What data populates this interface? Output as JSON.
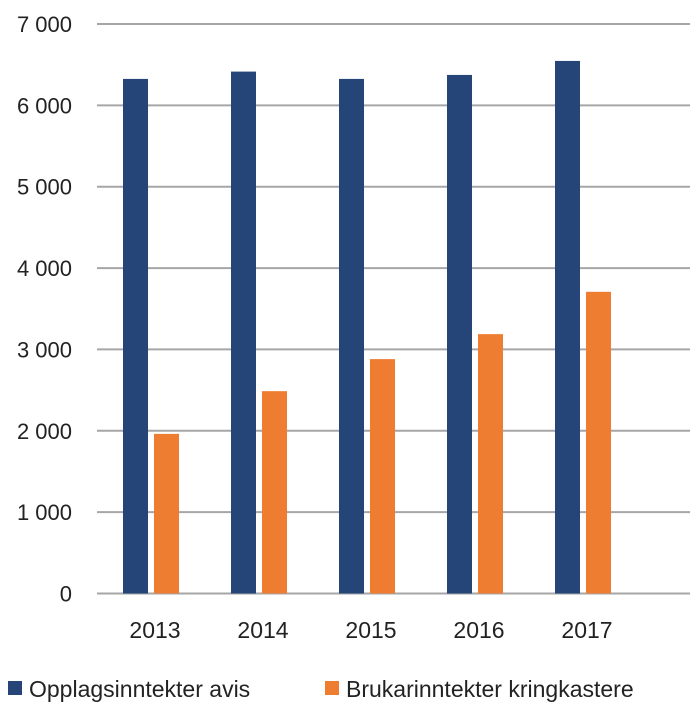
{
  "chart_data": {
    "type": "bar",
    "title": "",
    "xlabel": "",
    "ylabel": "",
    "categories": [
      "2013",
      "2014",
      "2015",
      "2016",
      "2017"
    ],
    "series": [
      {
        "name": "Opplagsinntekter avis",
        "color": "#254478",
        "values": [
          6325,
          6415,
          6325,
          6374,
          6546
        ]
      },
      {
        "name": "Brukarinntekter kringkastere",
        "color": "#ef7d31",
        "values": [
          1962,
          2487,
          2881,
          3188,
          3708
        ]
      }
    ],
    "ylim": [
      0,
      7000
    ],
    "yticks": [
      0,
      1000,
      2000,
      3000,
      4000,
      5000,
      6000,
      7000
    ],
    "ytick_labels": [
      "0",
      "1 000",
      "2 000",
      "3 000",
      "4 000",
      "5 000",
      "6 000",
      "7 000"
    ],
    "grid": true,
    "legend_position": "bottom"
  }
}
